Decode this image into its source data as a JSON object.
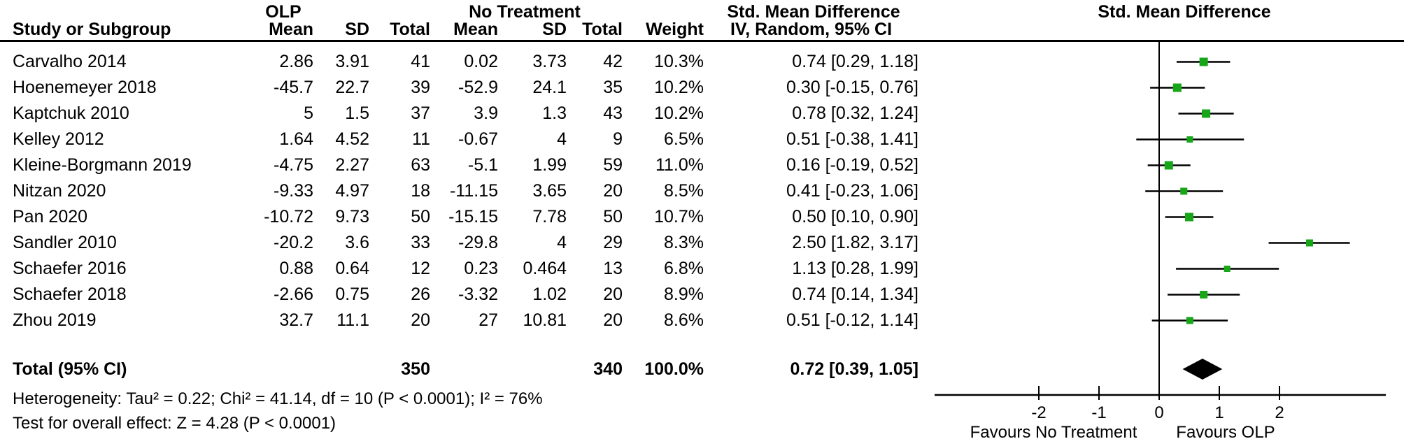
{
  "header": {
    "group1": "OLP",
    "group2": "No Treatment",
    "smd_col_title": "Std. Mean Difference",
    "plot_col_title": "Std. Mean Difference",
    "columns": [
      "Study or Subgroup",
      "Mean",
      "SD",
      "Total",
      "Mean",
      "SD",
      "Total",
      "Weight",
      "IV, Random, 95% CI"
    ]
  },
  "studies": [
    {
      "name": "Carvalho 2014",
      "mean1": "2.86",
      "sd1": "3.91",
      "n1": "41",
      "mean2": "0.02",
      "sd2": "3.73",
      "n2": "42",
      "weight": "10.3%",
      "smd": "0.74 [0.29, 1.18]"
    },
    {
      "name": "Hoenemeyer 2018",
      "mean1": "-45.7",
      "sd1": "22.7",
      "n1": "39",
      "mean2": "-52.9",
      "sd2": "24.1",
      "n2": "35",
      "weight": "10.2%",
      "smd": "0.30 [-0.15, 0.76]"
    },
    {
      "name": "Kaptchuk 2010",
      "mean1": "5",
      "sd1": "1.5",
      "n1": "37",
      "mean2": "3.9",
      "sd2": "1.3",
      "n2": "43",
      "weight": "10.2%",
      "smd": "0.78 [0.32, 1.24]"
    },
    {
      "name": "Kelley 2012",
      "mean1": "1.64",
      "sd1": "4.52",
      "n1": "11",
      "mean2": "-0.67",
      "sd2": "4",
      "n2": "9",
      "weight": "6.5%",
      "smd": "0.51 [-0.38, 1.41]"
    },
    {
      "name": "Kleine-Borgmann 2019",
      "mean1": "-4.75",
      "sd1": "2.27",
      "n1": "63",
      "mean2": "-5.1",
      "sd2": "1.99",
      "n2": "59",
      "weight": "11.0%",
      "smd": "0.16 [-0.19, 0.52]"
    },
    {
      "name": "Nitzan 2020",
      "mean1": "-9.33",
      "sd1": "4.97",
      "n1": "18",
      "mean2": "-11.15",
      "sd2": "3.65",
      "n2": "20",
      "weight": "8.5%",
      "smd": "0.41 [-0.23, 1.06]"
    },
    {
      "name": "Pan 2020",
      "mean1": "-10.72",
      "sd1": "9.73",
      "n1": "50",
      "mean2": "-15.15",
      "sd2": "7.78",
      "n2": "50",
      "weight": "10.7%",
      "smd": "0.50 [0.10, 0.90]"
    },
    {
      "name": "Sandler 2010",
      "mean1": "-20.2",
      "sd1": "3.6",
      "n1": "33",
      "mean2": "-29.8",
      "sd2": "4",
      "n2": "29",
      "weight": "8.3%",
      "smd": "2.50 [1.82, 3.17]"
    },
    {
      "name": "Schaefer 2016",
      "mean1": "0.88",
      "sd1": "0.64",
      "n1": "12",
      "mean2": "0.23",
      "sd2": "0.464",
      "n2": "13",
      "weight": "6.8%",
      "smd": "1.13 [0.28, 1.99]"
    },
    {
      "name": "Schaefer 2018",
      "mean1": "-2.66",
      "sd1": "0.75",
      "n1": "26",
      "mean2": "-3.32",
      "sd2": "1.02",
      "n2": "20",
      "weight": "8.9%",
      "smd": "0.74 [0.14, 1.34]"
    },
    {
      "name": "Zhou 2019",
      "mean1": "32.7",
      "sd1": "11.1",
      "n1": "20",
      "mean2": "27",
      "sd2": "10.81",
      "n2": "20",
      "weight": "8.6%",
      "smd": "0.51 [-0.12, 1.14]"
    }
  ],
  "total": {
    "label": "Total (95% CI)",
    "n1": "350",
    "n2": "340",
    "weight": "100.0%",
    "smd": "0.72 [0.39, 1.05]"
  },
  "footer": {
    "heterogeneity": "Heterogeneity: Tau² = 0.22; Chi² = 41.14, df = 10 (P < 0.0001); I² = 76%",
    "overall_effect": "Test for overall effect: Z = 4.28 (P < 0.0001)"
  },
  "axis": {
    "favours_left": "Favours No Treatment",
    "favours_right": "Favours OLP"
  },
  "colors": {
    "marker_green": "#17A617",
    "diamond_black": "#000000"
  },
  "chart_data": {
    "type": "scatter",
    "subtype": "forest_plot",
    "title": "Std. Mean Difference  IV, Random, 95% CI",
    "effect_measure": "Std. Mean Difference",
    "model": "IV, Random, 95% CI",
    "x_axis": {
      "ticks": [
        -2,
        -1,
        0,
        1,
        2
      ],
      "range": [
        -3.75,
        3.75
      ],
      "zero_line": 0,
      "label_left": "Favours No Treatment",
      "label_right": "Favours OLP"
    },
    "points": [
      {
        "study": "Carvalho 2014",
        "smd": 0.74,
        "ci_low": 0.29,
        "ci_high": 1.18,
        "weight_pct": 10.3
      },
      {
        "study": "Hoenemeyer 2018",
        "smd": 0.3,
        "ci_low": -0.15,
        "ci_high": 0.76,
        "weight_pct": 10.2
      },
      {
        "study": "Kaptchuk 2010",
        "smd": 0.78,
        "ci_low": 0.32,
        "ci_high": 1.24,
        "weight_pct": 10.2
      },
      {
        "study": "Kelley 2012",
        "smd": 0.51,
        "ci_low": -0.38,
        "ci_high": 1.41,
        "weight_pct": 6.5
      },
      {
        "study": "Kleine-Borgmann 2019",
        "smd": 0.16,
        "ci_low": -0.19,
        "ci_high": 0.52,
        "weight_pct": 11.0
      },
      {
        "study": "Nitzan 2020",
        "smd": 0.41,
        "ci_low": -0.23,
        "ci_high": 1.06,
        "weight_pct": 8.5
      },
      {
        "study": "Pan 2020",
        "smd": 0.5,
        "ci_low": 0.1,
        "ci_high": 0.9,
        "weight_pct": 10.7
      },
      {
        "study": "Sandler 2010",
        "smd": 2.5,
        "ci_low": 1.82,
        "ci_high": 3.17,
        "weight_pct": 8.3
      },
      {
        "study": "Schaefer 2016",
        "smd": 1.13,
        "ci_low": 0.28,
        "ci_high": 1.99,
        "weight_pct": 6.8
      },
      {
        "study": "Schaefer 2018",
        "smd": 0.74,
        "ci_low": 0.14,
        "ci_high": 1.34,
        "weight_pct": 8.9
      },
      {
        "study": "Zhou 2019",
        "smd": 0.51,
        "ci_low": -0.12,
        "ci_high": 1.14,
        "weight_pct": 8.6
      }
    ],
    "total": {
      "label": "Total (95% CI)",
      "smd": 0.72,
      "ci_low": 0.39,
      "ci_high": 1.05,
      "weight_pct": 100.0
    }
  }
}
